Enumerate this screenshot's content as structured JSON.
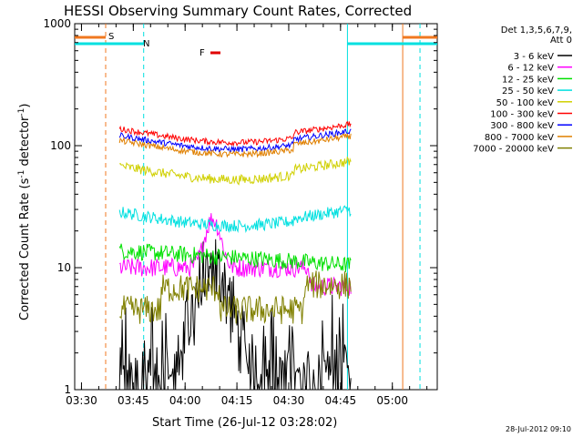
{
  "chart_data": {
    "type": "line",
    "title": "HESSI Observing Summary Count Rates, Corrected",
    "xlabel": "Start Time (26-Jul-12 03:28:02)",
    "ylabel_main": "Corrected Count Rate (s",
    "ylabel_sup1": "-1",
    "ylabel_mid": " detector",
    "ylabel_sup2": "-1",
    "ylabel_end": ")",
    "ylabel": "Corrected Count Rate (s-1 detector-1)",
    "y_scale": "log",
    "ylim": [
      1,
      1000
    ],
    "xlim": [
      "03:28:02",
      "05:13:00"
    ],
    "x_ticks": [
      "03:30",
      "03:45",
      "04:00",
      "04:15",
      "04:30",
      "04:45",
      "05:00"
    ],
    "y_ticks": [
      "1",
      "10",
      "100",
      "1000"
    ],
    "legend_header": [
      "Det 1,3,5,6,7,9,",
      "Att 0"
    ],
    "timestamp": "28-Jul-2012 09:10",
    "colors": {
      "sun_bar": "#f07820",
      "night_bar": "#00e0e0",
      "flare_bar": "#e00000",
      "saa_bar": "#ff9000"
    },
    "markers": [
      {
        "label": "S",
        "color": "#f07820",
        "time": "03:37"
      },
      {
        "label": "N",
        "color": "#00e0e0",
        "time": "03:48"
      },
      {
        "label": "F",
        "color": "#e00000",
        "time": "04:08"
      }
    ],
    "series": [
      {
        "name": "3 - 6 keV",
        "color": "#000000",
        "base": 1.4,
        "noise": 0.35
      },
      {
        "name": "6 - 12 keV",
        "color": "#ff00ff",
        "base": 10,
        "noise": 0.08
      },
      {
        "name": "12 - 25 keV",
        "color": "#00e000",
        "base": 11,
        "noise": 0.07
      },
      {
        "name": "25 - 50 keV",
        "color": "#00e0e0",
        "base": 26,
        "noise": 0.05
      },
      {
        "name": "50 - 100 keV",
        "color": "#d0d000",
        "base": 62,
        "noise": 0.04
      },
      {
        "name": "100 - 300 keV",
        "color": "#ff0000",
        "base": 125,
        "noise": 0.025
      },
      {
        "name": "300 - 800 keV",
        "color": "#0000ff",
        "base": 110,
        "noise": 0.025
      },
      {
        "name": "800 - 7000 keV",
        "color": "#e08000",
        "base": 100,
        "noise": 0.025
      },
      {
        "name": "7000 - 20000 keV",
        "color": "#808000",
        "base": 4.5,
        "noise": 0.12
      }
    ]
  }
}
